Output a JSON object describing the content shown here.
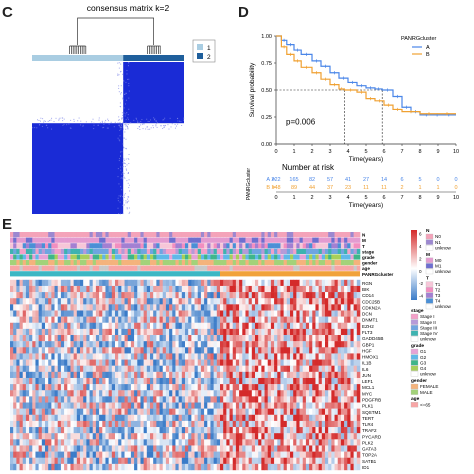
{
  "panels": {
    "c": {
      "letter": "C",
      "title": "consensus matrix k=2",
      "legend": [
        "1",
        "2"
      ],
      "colors": {
        "dark": "#1a2bd6",
        "light": "#ffffff",
        "track1": "#a9cde2",
        "track2": "#1f5f9c"
      }
    },
    "d": {
      "letter": "D",
      "ylabel": "Survival probability",
      "xlabel": "Time(years)",
      "pvalue": "p=0.006",
      "legend_title": "PANRGcluster",
      "risk_title": "Number at risk",
      "risk_ylabel": "PANRGcluster",
      "risk_rows": [
        {
          "label": "A",
          "values": [
            "222",
            "165",
            "82",
            "57",
            "41",
            "27",
            "14",
            "6",
            "5",
            "0",
            "0"
          ]
        },
        {
          "label": "B",
          "values": [
            "148",
            "89",
            "44",
            "37",
            "23",
            "11",
            "11",
            "2",
            "1",
            "1",
            "0"
          ]
        }
      ],
      "x_ticks": [
        "0",
        "1",
        "2",
        "3",
        "4",
        "5",
        "6",
        "7",
        "8",
        "9",
        "10"
      ],
      "y_ticks": [
        "0.00",
        "0.25",
        "0.50",
        "0.75",
        "1.00"
      ]
    },
    "e": {
      "letter": "E",
      "track_labels": [
        "N",
        "M",
        "T",
        "stage",
        "grade",
        "gender",
        "age",
        "PANRGcluster"
      ],
      "genes": [
        "RGN",
        "BIK",
        "CD14",
        "CDC25B",
        "CDKN2A",
        "DCN",
        "DNMT1",
        "EZH2",
        "FLT3",
        "GADD45B",
        "GBP1",
        "HGF",
        "HMOX1",
        "IL1B",
        "IL6",
        "JUN",
        "LEF1",
        "MCL1",
        "MYC",
        "PDGFRB",
        "PLK1",
        "SQSTM1",
        "TERT",
        "TLR4",
        "TRAF2",
        "PYCARD",
        "PLK2",
        "GATA3",
        "TOP2A",
        "SATB1",
        "ID1"
      ],
      "colorbar_ticks": [
        "6",
        "4",
        "2",
        "0",
        "-2",
        "-4"
      ],
      "legend_groups": [
        {
          "title": "N",
          "items": [
            {
              "label": "N0",
              "color": "#f4a3b9"
            },
            {
              "label": "N1",
              "color": "#9c88d0"
            },
            {
              "label": "unknow",
              "color": "#ffffff"
            }
          ]
        },
        {
          "title": "M",
          "items": [
            {
              "label": "M0",
              "color": "#e39bd0"
            },
            {
              "label": "M1",
              "color": "#6e6fcf"
            },
            {
              "label": "unknow",
              "color": "#ffffff"
            }
          ]
        },
        {
          "title": "T",
          "items": [
            {
              "label": "T1",
              "color": "#f7c6d8"
            },
            {
              "label": "T2",
              "color": "#f28ec0"
            },
            {
              "label": "T3",
              "color": "#a37fd2"
            },
            {
              "label": "T4",
              "color": "#4a8fd6"
            },
            {
              "label": "unknow",
              "color": "#ffffff"
            }
          ]
        },
        {
          "title": "stage",
          "items": [
            {
              "label": "Stage I",
              "color": "#f3a0c8"
            },
            {
              "label": "Stage II",
              "color": "#b59ad8"
            },
            {
              "label": "Stage III",
              "color": "#6fa5e0"
            },
            {
              "label": "Stage IV",
              "color": "#3db3b0"
            },
            {
              "label": "unknow",
              "color": "#ffffff"
            }
          ]
        },
        {
          "title": "grade",
          "items": [
            {
              "label": "G1",
              "color": "#e6a3d6"
            },
            {
              "label": "G2",
              "color": "#5fb8e8"
            },
            {
              "label": "G3",
              "color": "#3fb58a"
            },
            {
              "label": "G4",
              "color": "#a8cf5a"
            },
            {
              "label": "unknow",
              "color": "#ffffff"
            }
          ]
        },
        {
          "title": "gender",
          "items": [
            {
              "label": "FEMALE",
              "color": "#f4b37c"
            },
            {
              "label": "MALE",
              "color": "#a3d279"
            }
          ]
        },
        {
          "title": "age",
          "items": [
            {
              "label": "<=65",
              "color": "#f7a6a6"
            }
          ]
        }
      ],
      "colors": {
        "high": "#d42a2a",
        "low": "#3a7bc8",
        "mid": "#ffffff",
        "clusterA": "#3cb7c4",
        "clusterB": "#f1a23a"
      }
    }
  },
  "chart_data": [
    {
      "type": "heatmap",
      "title": "consensus matrix k=2",
      "legend": [
        "1",
        "2"
      ],
      "clusters": [
        {
          "name": "1",
          "fraction": 0.6
        },
        {
          "name": "2",
          "fraction": 0.4
        }
      ],
      "value_range": [
        0,
        1
      ]
    },
    {
      "type": "line",
      "xlabel": "Time(years)",
      "ylabel": "Survival probability",
      "xlim": [
        0,
        10
      ],
      "ylim": [
        0,
        1
      ],
      "legend_title": "PANRGcluster",
      "legend_position": "right",
      "annotation": "p=0.006",
      "median_survival_reference": {
        "y": 0.5,
        "x": [
          3.8,
          5.9
        ]
      },
      "series": [
        {
          "name": "A",
          "color": "#4a86e8",
          "x": [
            0,
            0.3,
            0.6,
            1.0,
            1.4,
            2.0,
            2.5,
            3.0,
            3.5,
            4.0,
            4.5,
            5.0,
            5.5,
            5.9,
            6.5,
            7.0,
            7.5,
            8.0,
            8.7,
            9.2,
            10.0
          ],
          "y": [
            1.0,
            0.96,
            0.92,
            0.87,
            0.83,
            0.77,
            0.72,
            0.66,
            0.61,
            0.57,
            0.54,
            0.52,
            0.51,
            0.5,
            0.44,
            0.34,
            0.3,
            0.27,
            0.27,
            0.27,
            0.27
          ]
        },
        {
          "name": "B",
          "color": "#f0a132",
          "x": [
            0,
            0.3,
            0.6,
            1.0,
            1.4,
            2.0,
            2.5,
            3.0,
            3.5,
            3.8,
            4.5,
            5.0,
            5.5,
            6.0,
            6.5,
            7.0,
            8.0,
            9.0,
            10.0
          ],
          "y": [
            1.0,
            0.9,
            0.83,
            0.77,
            0.71,
            0.66,
            0.6,
            0.55,
            0.51,
            0.5,
            0.48,
            0.42,
            0.4,
            0.36,
            0.32,
            0.3,
            0.28,
            0.28,
            0.28
          ]
        }
      ]
    },
    {
      "type": "table",
      "title": "Number at risk",
      "columns": [
        "0",
        "1",
        "2",
        "3",
        "4",
        "5",
        "6",
        "7",
        "8",
        "9",
        "10"
      ],
      "rows": [
        {
          "name": "A",
          "values": [
            222,
            165,
            82,
            57,
            41,
            27,
            14,
            6,
            5,
            0,
            0
          ]
        },
        {
          "name": "B",
          "values": [
            148,
            89,
            44,
            37,
            23,
            11,
            11,
            2,
            1,
            1,
            0
          ]
        }
      ]
    },
    {
      "type": "heatmap",
      "rows": [
        "RGN",
        "BIK",
        "CD14",
        "CDC25B",
        "CDKN2A",
        "DCN",
        "DNMT1",
        "EZH2",
        "FLT3",
        "GADD45B",
        "GBP1",
        "HGF",
        "HMOX1",
        "IL1B",
        "IL6",
        "JUN",
        "LEF1",
        "MCL1",
        "MYC",
        "PDGFRB",
        "PLK1",
        "SQSTM1",
        "TERT",
        "TLR4",
        "TRAF2",
        "PYCARD",
        "PLK2",
        "GATA3",
        "TOP2A",
        "SATB1",
        "ID1"
      ],
      "value_range": [
        -4,
        6
      ],
      "column_groups": [
        {
          "name": "A",
          "fraction": 0.6
        },
        {
          "name": "B",
          "fraction": 0.4
        }
      ]
    }
  ]
}
